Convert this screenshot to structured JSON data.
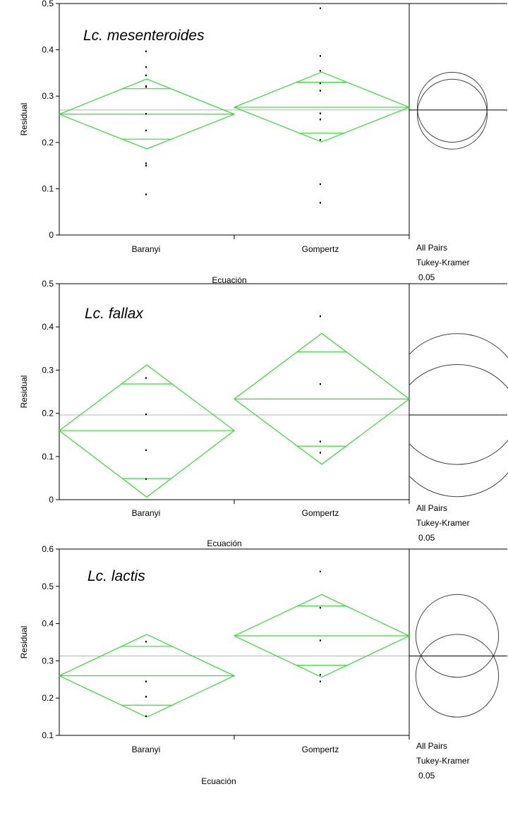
{
  "chart_data": [
    {
      "type": "scatter",
      "title": "Lc. mesenteroides",
      "xlabel": "Ecuación",
      "ylabel": "Residual",
      "ylim": [
        0,
        0.5
      ],
      "yticks": [
        "0",
        "0.1",
        "0.2",
        "0.3",
        "0.4",
        "0.5"
      ],
      "grand_mean": 0.27,
      "categories": [
        "Baranyi",
        "Gompertz"
      ],
      "groups": [
        {
          "name": "Baranyi",
          "mean": 0.261,
          "ci": [
            0.186,
            0.337
          ],
          "quantiles": [
            0.207,
            0.316
          ],
          "points": [
            0.397,
            0.363,
            0.345,
            0.322,
            0.32,
            0.262,
            0.226,
            0.155,
            0.15,
            0.088
          ]
        },
        {
          "name": "Gompertz",
          "mean": 0.276,
          "ci": [
            0.201,
            0.352
          ],
          "quantiles": [
            0.22,
            0.33
          ],
          "points": [
            0.49,
            0.387,
            0.355,
            0.328,
            0.312,
            0.263,
            0.25,
            0.206,
            0.11,
            0.07
          ]
        }
      ],
      "comparison": {
        "label_lines": [
          "All Pairs",
          "Tukey-Kramer",
          "0.05"
        ]
      }
    },
    {
      "type": "scatter",
      "title": "Lc. fallax",
      "xlabel": "Ecuación",
      "ylabel": "Residual",
      "ylim": [
        0,
        0.5
      ],
      "yticks": [
        "0",
        "0.1",
        "0.2",
        "0.3",
        "0.4",
        "0.5"
      ],
      "grand_mean": 0.196,
      "categories": [
        "Baranyi",
        "Gompertz"
      ],
      "groups": [
        {
          "name": "Baranyi",
          "mean": 0.16,
          "ci": [
            0.006,
            0.312
          ],
          "quantiles": [
            0.049,
            0.268
          ],
          "points": [
            0.282,
            0.198,
            0.115,
            0.048
          ]
        },
        {
          "name": "Gompertz",
          "mean": 0.233,
          "ci": [
            0.082,
            0.385
          ],
          "quantiles": [
            0.124,
            0.342
          ],
          "points": [
            0.425,
            0.268,
            0.135,
            0.109
          ]
        }
      ],
      "comparison": {
        "label_lines": [
          "All Pairs",
          "Tukey-Kramer",
          "0.05"
        ]
      }
    },
    {
      "type": "scatter",
      "title": "Lc. lactis",
      "xlabel": "Ecuación",
      "ylabel": "Residual",
      "ylim": [
        0.1,
        0.6
      ],
      "yticks": [
        "0.1",
        "0.2",
        "0.3",
        "0.4",
        "0.5",
        "0.6"
      ],
      "grand_mean": 0.313,
      "categories": [
        "Baranyi",
        "Gompertz"
      ],
      "groups": [
        {
          "name": "Baranyi",
          "mean": 0.26,
          "ci": [
            0.149,
            0.371
          ],
          "quantiles": [
            0.181,
            0.339
          ],
          "points": [
            0.352,
            0.245,
            0.204,
            0.152
          ]
        },
        {
          "name": "Gompertz",
          "mean": 0.367,
          "ci": [
            0.256,
            0.478
          ],
          "quantiles": [
            0.288,
            0.447
          ],
          "points": [
            0.54,
            0.443,
            0.355,
            0.263,
            0.245
          ]
        }
      ],
      "comparison": {
        "label_lines": [
          "All Pairs",
          "Tukey-Kramer",
          "0.05"
        ]
      }
    }
  ],
  "colors": {
    "diamond": "#33dd33",
    "grand_mean_line": "#b4b4b4",
    "axis": "#000000",
    "circle": "#444444"
  }
}
